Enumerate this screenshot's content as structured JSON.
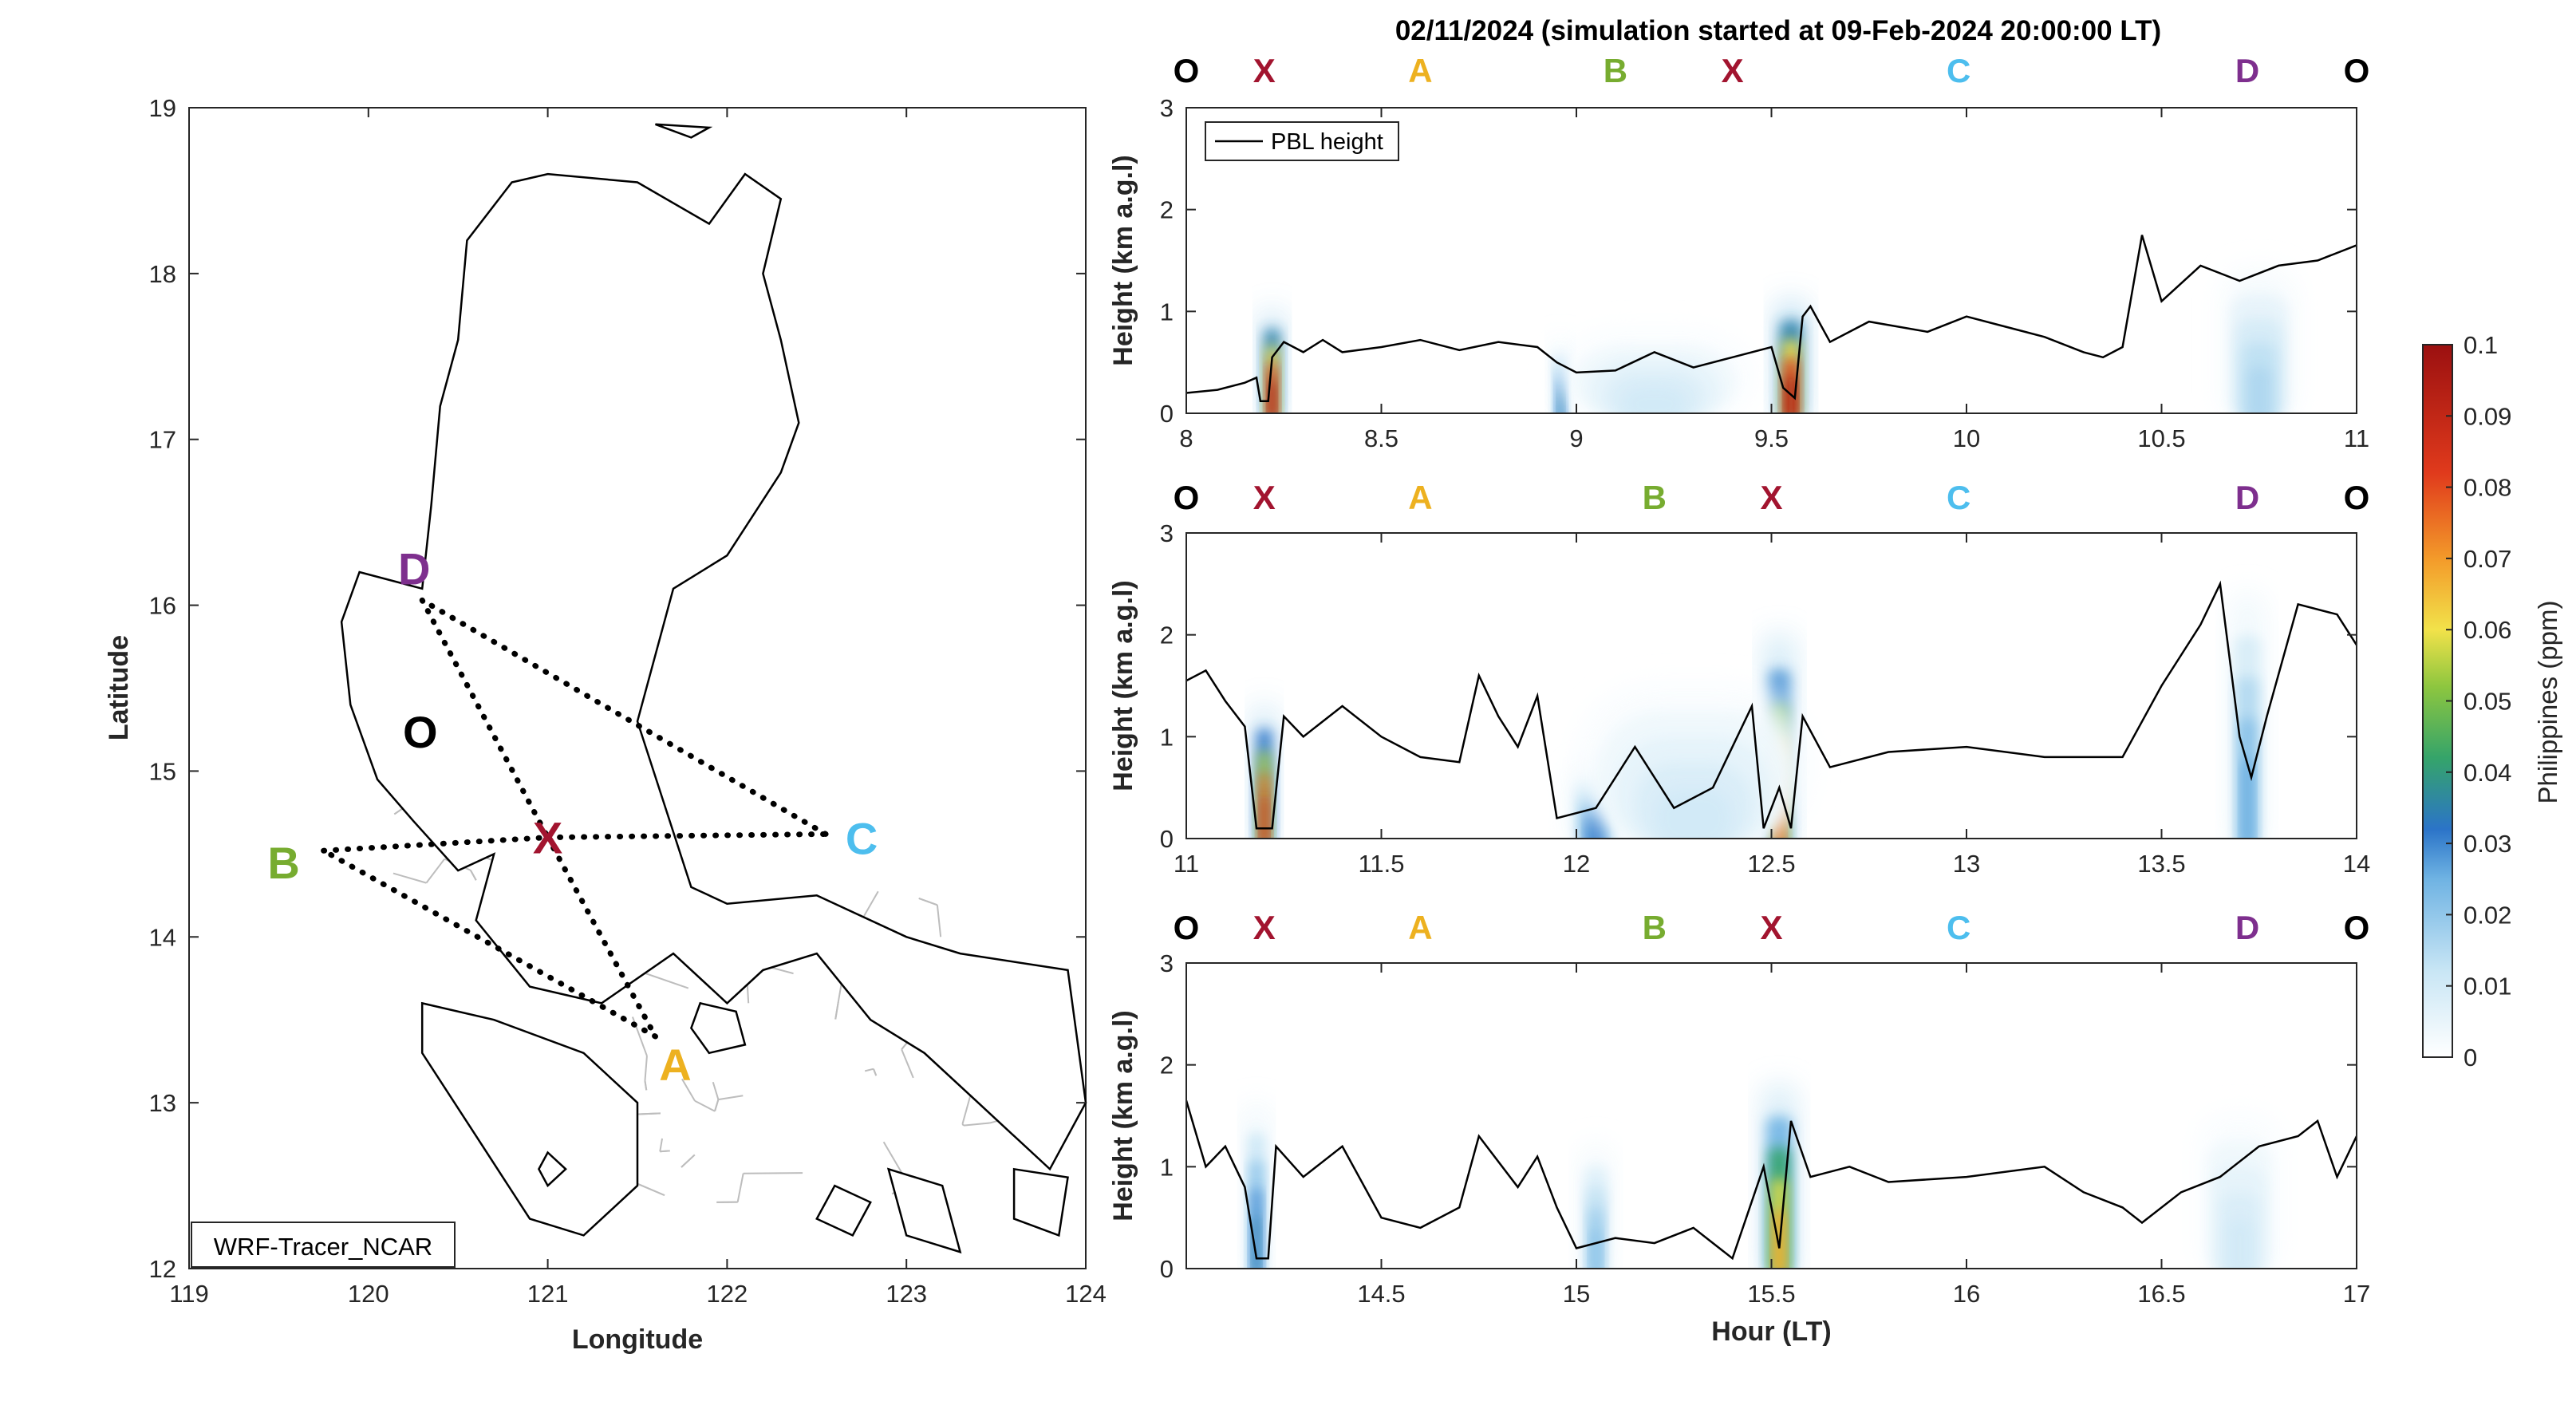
{
  "figure_title": "02/11/2024 (simulation started at 09-Feb-2024 20:00:00 LT)",
  "colors": {
    "O": "#000000",
    "X": "#a2142f",
    "A": "#edb120",
    "B": "#77ac30",
    "C": "#4dbeee",
    "D": "#7e2f8e",
    "pbl_line": "#000000",
    "coast": "#000000",
    "province": "#bdbdbd",
    "route": "#000000"
  },
  "map": {
    "xlabel": "Longitude",
    "ylabel": "Latitude",
    "xlim": [
      119,
      124
    ],
    "ylim": [
      12,
      19
    ],
    "xticks": [
      "119",
      "120",
      "121",
      "122",
      "123",
      "124"
    ],
    "yticks": [
      "12",
      "13",
      "14",
      "15",
      "16",
      "17",
      "18",
      "19"
    ],
    "label_box": "WRF-Tracer_NCAR",
    "points": [
      {
        "name": "O",
        "lon": 120.4,
        "lat": 15.2
      },
      {
        "name": "X",
        "lon": 121.0,
        "lat": 14.6
      },
      {
        "name": "A",
        "lon": 121.6,
        "lat": 13.4
      },
      {
        "name": "B",
        "lon": 119.75,
        "lat": 14.52
      },
      {
        "name": "C",
        "lon": 122.55,
        "lat": 14.62
      },
      {
        "name": "D",
        "lon": 120.3,
        "lat": 16.03
      }
    ],
    "route": [
      "D",
      "X",
      "A",
      "B",
      "X",
      "C",
      "D"
    ]
  },
  "colorbar": {
    "label": "Philippines (ppm)",
    "ticks": [
      "0",
      "0.01",
      "0.02",
      "0.03",
      "0.04",
      "0.05",
      "0.06",
      "0.07",
      "0.08",
      "0.09",
      "0.1"
    ],
    "range": [
      0,
      0.1
    ],
    "colormap": "parula-like blue → green → yellow → red"
  },
  "chart_data": [
    {
      "type": "heatmap",
      "ylabel": "Height (km a.g.l)",
      "xlabel": "",
      "xlim": [
        8,
        11
      ],
      "ylim": [
        0,
        3
      ],
      "xticks": [
        "8",
        "8.5",
        "9",
        "9.5",
        "10",
        "10.5",
        "11"
      ],
      "yticks": [
        "0",
        "1",
        "2",
        "3"
      ],
      "legend": {
        "entry": "PBL height",
        "placement": "top-left"
      },
      "waypoints": [
        {
          "label": "O",
          "x": 8.0
        },
        {
          "label": "X",
          "x": 8.2
        },
        {
          "label": "A",
          "x": 8.6
        },
        {
          "label": "B",
          "x": 9.1
        },
        {
          "label": "X",
          "x": 9.4
        },
        {
          "label": "C",
          "x": 9.98
        },
        {
          "label": "D",
          "x": 10.72
        },
        {
          "label": "O",
          "x": 11.0
        }
      ],
      "tracer_blobs": [
        {
          "x": 8.22,
          "w": 0.05,
          "h": 1.0,
          "peak": 0.1
        },
        {
          "x": 8.96,
          "w": 0.04,
          "h": 0.7,
          "peak": 0.035
        },
        {
          "x": 9.55,
          "w": 0.07,
          "h": 1.1,
          "peak": 0.1
        },
        {
          "x": 10.75,
          "w": 0.18,
          "h": 1.4,
          "peak": 0.016
        },
        {
          "x": 9.2,
          "w": 0.5,
          "h": 0.8,
          "peak": 0.01
        }
      ],
      "pbl_height": [
        [
          8.0,
          0.2
        ],
        [
          8.08,
          0.23
        ],
        [
          8.15,
          0.3
        ],
        [
          8.18,
          0.35
        ],
        [
          8.19,
          0.12
        ],
        [
          8.21,
          0.12
        ],
        [
          8.22,
          0.55
        ],
        [
          8.25,
          0.7
        ],
        [
          8.3,
          0.6
        ],
        [
          8.35,
          0.72
        ],
        [
          8.4,
          0.6
        ],
        [
          8.5,
          0.65
        ],
        [
          8.6,
          0.72
        ],
        [
          8.7,
          0.62
        ],
        [
          8.8,
          0.7
        ],
        [
          8.9,
          0.65
        ],
        [
          8.95,
          0.5
        ],
        [
          9.0,
          0.4
        ],
        [
          9.1,
          0.42
        ],
        [
          9.2,
          0.6
        ],
        [
          9.3,
          0.45
        ],
        [
          9.4,
          0.55
        ],
        [
          9.5,
          0.65
        ],
        [
          9.53,
          0.25
        ],
        [
          9.56,
          0.15
        ],
        [
          9.58,
          0.95
        ],
        [
          9.6,
          1.05
        ],
        [
          9.65,
          0.7
        ],
        [
          9.75,
          0.9
        ],
        [
          9.9,
          0.8
        ],
        [
          10.0,
          0.95
        ],
        [
          10.1,
          0.85
        ],
        [
          10.2,
          0.75
        ],
        [
          10.3,
          0.6
        ],
        [
          10.35,
          0.55
        ],
        [
          10.4,
          0.65
        ],
        [
          10.45,
          1.75
        ],
        [
          10.5,
          1.1
        ],
        [
          10.6,
          1.45
        ],
        [
          10.7,
          1.3
        ],
        [
          10.8,
          1.45
        ],
        [
          10.9,
          1.5
        ],
        [
          11.0,
          1.65
        ]
      ]
    },
    {
      "type": "heatmap",
      "ylabel": "Height (km a.g.l)",
      "xlabel": "",
      "xlim": [
        11,
        14
      ],
      "ylim": [
        0,
        3
      ],
      "xticks": [
        "11",
        "11.5",
        "12",
        "12.5",
        "13",
        "13.5",
        "14"
      ],
      "yticks": [
        "0",
        "1",
        "2",
        "3"
      ],
      "waypoints": [
        {
          "label": "O",
          "x": 11.0
        },
        {
          "label": "X",
          "x": 11.2
        },
        {
          "label": "A",
          "x": 11.6
        },
        {
          "label": "B",
          "x": 12.2
        },
        {
          "label": "X",
          "x": 12.5
        },
        {
          "label": "C",
          "x": 12.98
        },
        {
          "label": "D",
          "x": 13.72
        },
        {
          "label": "O",
          "x": 14.0
        }
      ],
      "tracer_blobs": [
        {
          "x": 11.2,
          "w": 0.05,
          "h": 1.3,
          "peak": 0.09
        },
        {
          "x": 12.05,
          "w": 0.12,
          "h": 0.7,
          "peak": 0.032
        },
        {
          "x": 12.52,
          "w": 0.07,
          "h": 2.0,
          "peak": 0.08
        },
        {
          "x": 13.72,
          "w": 0.08,
          "h": 2.4,
          "peak": 0.026
        },
        {
          "x": 12.3,
          "w": 0.6,
          "h": 1.5,
          "peak": 0.01
        }
      ],
      "pbl_height": [
        [
          11.0,
          1.55
        ],
        [
          11.05,
          1.65
        ],
        [
          11.1,
          1.35
        ],
        [
          11.15,
          1.1
        ],
        [
          11.18,
          0.1
        ],
        [
          11.22,
          0.1
        ],
        [
          11.25,
          1.2
        ],
        [
          11.3,
          1.0
        ],
        [
          11.4,
          1.3
        ],
        [
          11.5,
          1.0
        ],
        [
          11.6,
          0.8
        ],
        [
          11.7,
          0.75
        ],
        [
          11.75,
          1.6
        ],
        [
          11.8,
          1.2
        ],
        [
          11.85,
          0.9
        ],
        [
          11.9,
          1.4
        ],
        [
          11.95,
          0.2
        ],
        [
          12.05,
          0.3
        ],
        [
          12.15,
          0.9
        ],
        [
          12.25,
          0.3
        ],
        [
          12.35,
          0.5
        ],
        [
          12.45,
          1.3
        ],
        [
          12.48,
          0.1
        ],
        [
          12.52,
          0.5
        ],
        [
          12.55,
          0.1
        ],
        [
          12.58,
          1.2
        ],
        [
          12.65,
          0.7
        ],
        [
          12.8,
          0.85
        ],
        [
          13.0,
          0.9
        ],
        [
          13.2,
          0.8
        ],
        [
          13.4,
          0.8
        ],
        [
          13.5,
          1.5
        ],
        [
          13.6,
          2.1
        ],
        [
          13.65,
          2.5
        ],
        [
          13.7,
          1.0
        ],
        [
          13.73,
          0.6
        ],
        [
          13.77,
          1.2
        ],
        [
          13.85,
          2.3
        ],
        [
          13.95,
          2.2
        ],
        [
          14.0,
          1.9
        ]
      ]
    },
    {
      "type": "heatmap",
      "ylabel": "Height (km a.g.l)",
      "xlabel": "Hour (LT)",
      "xlim": [
        14,
        17
      ],
      "ylim": [
        0,
        3
      ],
      "xticks": [
        "14.5",
        "15",
        "15.5",
        "16",
        "16.5",
        "17"
      ],
      "yticks": [
        "0",
        "1",
        "2",
        "3"
      ],
      "waypoints": [
        {
          "label": "O",
          "x": 14.0
        },
        {
          "label": "X",
          "x": 14.2
        },
        {
          "label": "A",
          "x": 14.6
        },
        {
          "label": "B",
          "x": 15.2
        },
        {
          "label": "X",
          "x": 15.5
        },
        {
          "label": "C",
          "x": 15.98
        },
        {
          "label": "D",
          "x": 16.72
        },
        {
          "label": "O",
          "x": 17.0
        }
      ],
      "tracer_blobs": [
        {
          "x": 14.18,
          "w": 0.05,
          "h": 1.6,
          "peak": 0.035
        },
        {
          "x": 15.05,
          "w": 0.07,
          "h": 1.2,
          "peak": 0.022
        },
        {
          "x": 15.52,
          "w": 0.08,
          "h": 1.8,
          "peak": 0.07
        },
        {
          "x": 16.7,
          "w": 0.2,
          "h": 1.5,
          "peak": 0.01
        }
      ],
      "pbl_height": [
        [
          14.0,
          1.65
        ],
        [
          14.05,
          1.0
        ],
        [
          14.1,
          1.2
        ],
        [
          14.15,
          0.8
        ],
        [
          14.18,
          0.1
        ],
        [
          14.21,
          0.1
        ],
        [
          14.23,
          1.2
        ],
        [
          14.3,
          0.9
        ],
        [
          14.4,
          1.2
        ],
        [
          14.5,
          0.5
        ],
        [
          14.6,
          0.4
        ],
        [
          14.7,
          0.6
        ],
        [
          14.75,
          1.3
        ],
        [
          14.85,
          0.8
        ],
        [
          14.9,
          1.1
        ],
        [
          14.95,
          0.6
        ],
        [
          15.0,
          0.2
        ],
        [
          15.1,
          0.3
        ],
        [
          15.2,
          0.25
        ],
        [
          15.3,
          0.4
        ],
        [
          15.4,
          0.1
        ],
        [
          15.48,
          1.0
        ],
        [
          15.52,
          0.2
        ],
        [
          15.55,
          1.45
        ],
        [
          15.6,
          0.9
        ],
        [
          15.7,
          1.0
        ],
        [
          15.8,
          0.85
        ],
        [
          16.0,
          0.9
        ],
        [
          16.2,
          1.0
        ],
        [
          16.3,
          0.75
        ],
        [
          16.4,
          0.6
        ],
        [
          16.45,
          0.45
        ],
        [
          16.55,
          0.75
        ],
        [
          16.65,
          0.9
        ],
        [
          16.75,
          1.2
        ],
        [
          16.85,
          1.3
        ],
        [
          16.9,
          1.45
        ],
        [
          16.95,
          0.9
        ],
        [
          17.0,
          1.3
        ]
      ]
    }
  ]
}
